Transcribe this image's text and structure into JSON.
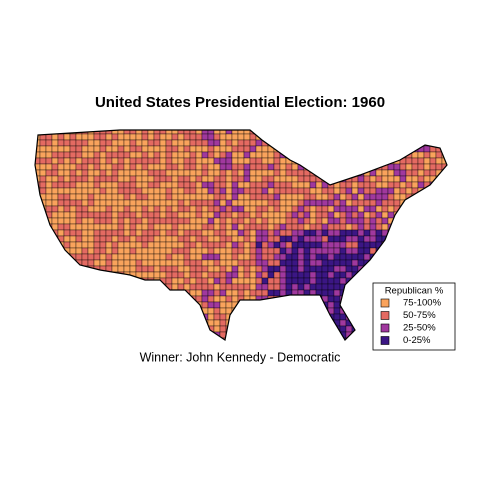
{
  "title": "United States Presidential Election: 1960",
  "caption": "Winner: John Kennedy - Democratic",
  "legend": {
    "title": "Republican %",
    "items": [
      {
        "label": "75-100%",
        "color": "#f9a35c"
      },
      {
        "label": "50-75%",
        "color": "#e46a62"
      },
      {
        "label": "25-50%",
        "color": "#a0389e"
      },
      {
        "label": "0-25%",
        "color": "#3b1684"
      }
    ]
  }
}
